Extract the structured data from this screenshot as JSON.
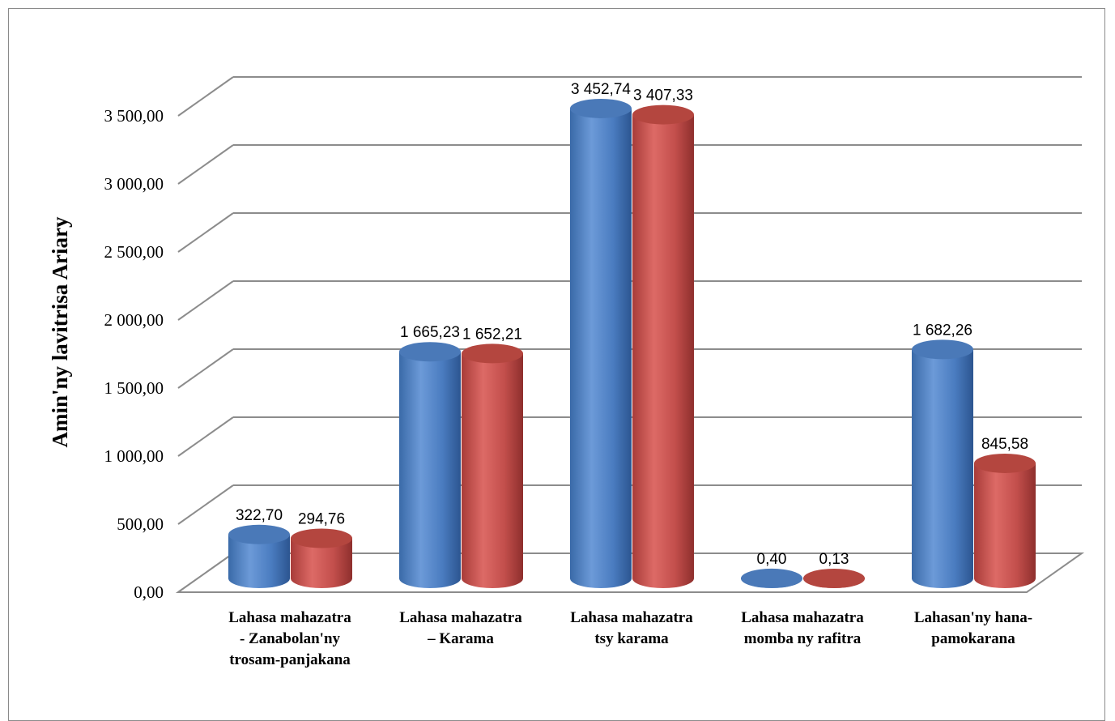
{
  "chart_data": {
    "type": "bar",
    "style": "3d-cylinder",
    "categories": [
      [
        "Lahasa mahazatra",
        "- Zanabolan'ny",
        "trosam-panjakana"
      ],
      [
        "Lahasa mahazatra",
        "– Karama"
      ],
      [
        "Lahasa mahazatra",
        "tsy karama"
      ],
      [
        "Lahasa mahazatra",
        "momba ny rafitra"
      ],
      [
        "Lahasan'ny hana-",
        "pamokarana"
      ]
    ],
    "series": [
      {
        "color": "#4f81bd",
        "values": [
          322.7,
          1665.23,
          3452.74,
          0.4,
          1682.26
        ],
        "labels": [
          "322,70",
          "1 665,23",
          "3 452,74",
          "0,40",
          "1 682,26"
        ]
      },
      {
        "color": "#c0504d",
        "values": [
          294.76,
          1652.21,
          3407.33,
          0.13,
          845.58
        ],
        "labels": [
          "294,76",
          "1 652,21",
          "3 407,33",
          "0,13",
          "845,58"
        ]
      }
    ],
    "ylabel": "Amin'ny lavitrisa Ariary",
    "yticks": [
      "0,00",
      "500,00",
      "1 000,00",
      "1 500,00",
      "2 000,00",
      "2 500,00",
      "3 000,00",
      "3 500,00"
    ],
    "ylim": [
      0,
      3500
    ],
    "grid": true,
    "legend": "none"
  }
}
